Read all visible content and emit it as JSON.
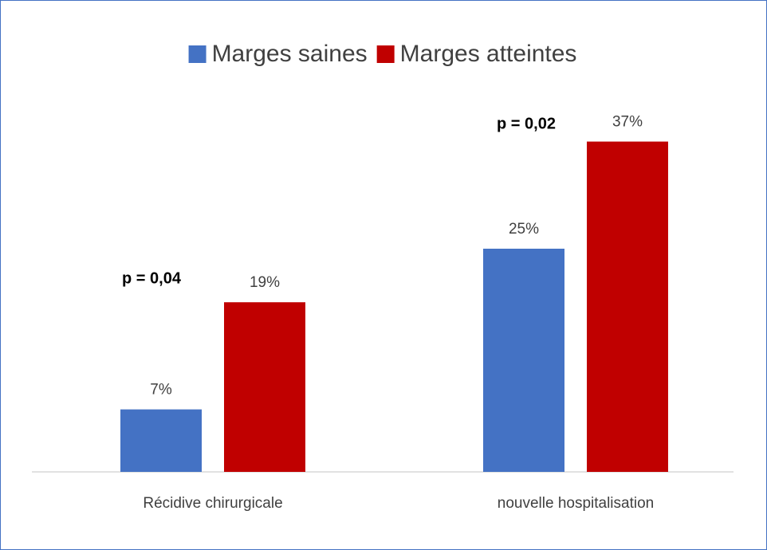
{
  "chart_data": {
    "type": "bar",
    "categories": [
      "Récidive chirurgicale",
      "nouvelle hospitalisation"
    ],
    "series": [
      {
        "name": "Marges saines",
        "color": "#4472c4",
        "values": [
          7,
          25
        ],
        "value_labels": [
          "7%",
          "25%"
        ]
      },
      {
        "name": "Marges atteintes",
        "color": "#c00000",
        "values": [
          19,
          37
        ],
        "value_labels": [
          "19%",
          "37%"
        ]
      }
    ],
    "annotations": [
      "p = 0,04",
      "p = 0,02"
    ],
    "ylim": [
      0,
      40
    ],
    "legend": "top"
  }
}
